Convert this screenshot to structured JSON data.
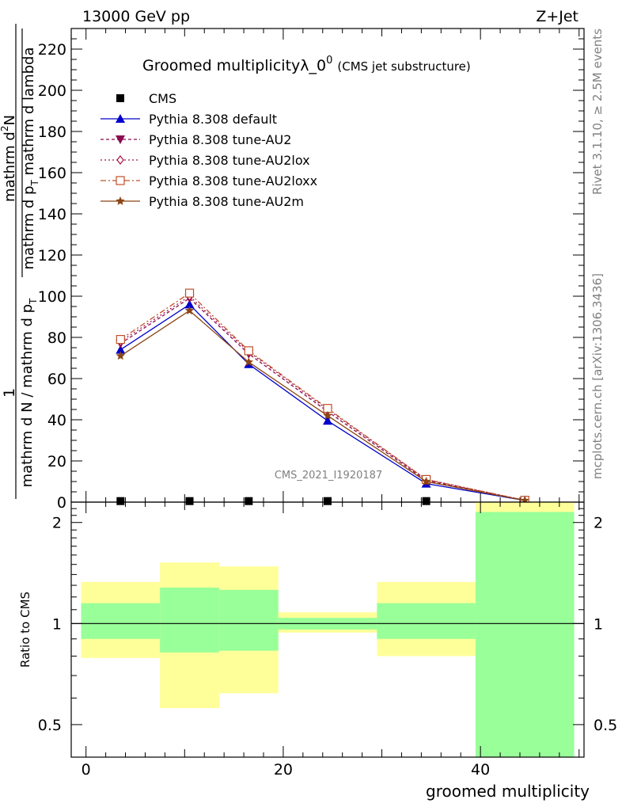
{
  "header": {
    "energy_label": "13000 GeV pp",
    "process_label": "Z+Jet",
    "rivet_label": "Rivet 3.1.10, ≥ 2.5M events",
    "mcplots_label": "mcplots.cern.ch [arXiv:1306.3436]",
    "analysis_id": "CMS_2021_I1920187"
  },
  "chart_data": [
    {
      "type": "line",
      "title_main": "Groomed multiplicityλ_0",
      "title_sup": "0",
      "title_small": "(CMS jet substructure)",
      "ylabel_numer_main": "mathrm d",
      "ylabel_numer_sup": "2",
      "ylabel_numer_tail": "N",
      "ylabel_denom_a": "mathrm d p",
      "ylabel_denom_sub": "T",
      "ylabel_denom_b": " mathrm d lambda",
      "ylabel_prefix_num": "1",
      "ylabel_prefix_den_a": "mathrm d N / mathrm d p",
      "ylabel_prefix_den_sub": "T",
      "ylim": [
        0,
        230
      ],
      "yticks": [
        0,
        20,
        40,
        60,
        80,
        100,
        120,
        140,
        160,
        180,
        200,
        220
      ],
      "xlim": [
        -1.5,
        50.5
      ],
      "x": [
        3.5,
        10.5,
        16.5,
        24.5,
        34.5,
        44.5
      ],
      "legend_position": "top-left",
      "series": [
        {
          "name": "CMS",
          "color": "#000000",
          "marker": "square",
          "values": [
            0.5,
            0.5,
            0.5,
            0.5,
            0.5,
            0.3
          ]
        },
        {
          "name": "Pythia 8.308 default",
          "color": "#0000cc",
          "marker": "triangle-up",
          "dash": "",
          "values": [
            74,
            96,
            67,
            39.5,
            9,
            0.8
          ]
        },
        {
          "name": "Pythia 8.308 tune-AU2",
          "color": "#8b0a50",
          "marker": "triangle-down",
          "dash": "4,3",
          "values": [
            77,
            99,
            72,
            44,
            10.5,
            0.9
          ]
        },
        {
          "name": "Pythia 8.308 tune-AU2lox",
          "color": "#a0144a",
          "marker": "diamond-open",
          "dash": "2,3",
          "values": [
            78,
            100,
            73,
            45,
            11,
            0.9
          ]
        },
        {
          "name": "Pythia 8.308 tune-AU2loxx",
          "color": "#c0502a",
          "marker": "square-open",
          "dash": "7,3,2,3",
          "values": [
            79,
            101.5,
            73.5,
            45.5,
            11,
            0.9
          ]
        },
        {
          "name": "Pythia 8.308 tune-AU2m",
          "color": "#8b4513",
          "marker": "star",
          "dash": "",
          "values": [
            71,
            93,
            68,
            42,
            10,
            0.8
          ]
        }
      ]
    },
    {
      "type": "area",
      "ylabel": "Ratio to CMS",
      "xlabel": "groomed multiplicity",
      "scale": "log",
      "ylim": [
        0.4,
        2.3
      ],
      "yticks": [
        0.5,
        1,
        2
      ],
      "xticks": [
        0,
        20,
        40
      ],
      "xlim": [
        -1.5,
        50.5
      ],
      "reference": 1,
      "bins": [
        {
          "lo": -0.5,
          "hi": 7.5,
          "stat": [
            0.9,
            1.15
          ],
          "total": [
            0.79,
            1.33
          ]
        },
        {
          "lo": 7.5,
          "hi": 13.5,
          "stat": [
            0.82,
            1.28
          ],
          "total": [
            0.56,
            1.52
          ]
        },
        {
          "lo": 13.5,
          "hi": 19.5,
          "stat": [
            0.83,
            1.26
          ],
          "total": [
            0.62,
            1.48
          ]
        },
        {
          "lo": 19.5,
          "hi": 29.5,
          "stat": [
            0.96,
            1.04
          ],
          "total": [
            0.94,
            1.08
          ]
        },
        {
          "lo": 29.5,
          "hi": 39.5,
          "stat": [
            0.9,
            1.15
          ],
          "total": [
            0.8,
            1.33
          ]
        },
        {
          "lo": 39.5,
          "hi": 49.5,
          "stat": [
            0.4,
            2.15
          ],
          "total": [
            0.4,
            2.3
          ]
        }
      ],
      "band_colors": {
        "stat": "#99ff99",
        "total": "#ffff99"
      }
    }
  ]
}
